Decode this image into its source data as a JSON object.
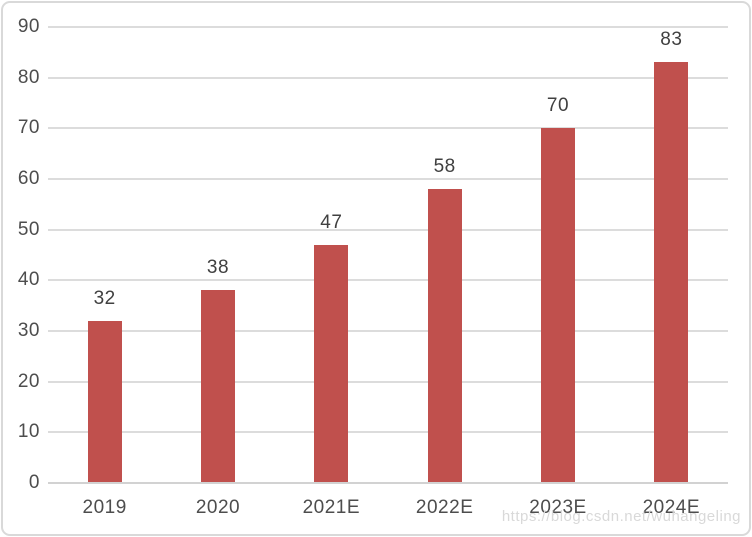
{
  "watermark": {
    "text": "https://blog.csdn.net/wuhangeling"
  },
  "colors": {
    "bar": "#c0504d",
    "gridline": "#dcdcdc",
    "axis_line": "#d2d2d2",
    "tick_label_text": "#4d4d4d",
    "value_label_text": "#404040",
    "frame_border": "#d9d9d9",
    "watermark_text": "#d9d9d9",
    "background": "#ffffff"
  },
  "chart_data": {
    "type": "bar",
    "categories": [
      "2019",
      "2020",
      "2021E",
      "2022E",
      "2023E",
      "2024E"
    ],
    "values": [
      32,
      38,
      47,
      58,
      70,
      83
    ],
    "series_name": "",
    "title": "",
    "xlabel": "",
    "ylabel": "",
    "ylim": [
      0,
      90
    ],
    "ytick_step": 10,
    "yticks": [
      0,
      10,
      20,
      30,
      40,
      50,
      60,
      70,
      80,
      90
    ],
    "grid": true,
    "legend": false,
    "data_labels_shown": true
  }
}
